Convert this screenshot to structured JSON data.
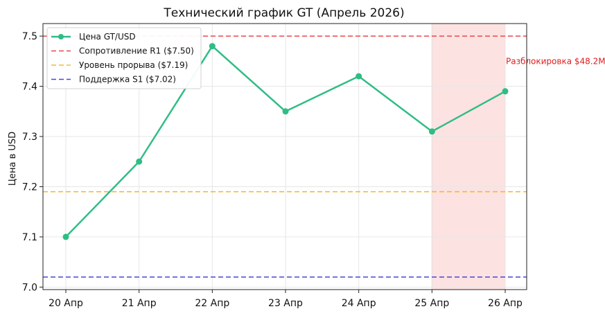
{
  "chart_data": {
    "type": "line",
    "title": "Технический график GT (Апрель 2026)",
    "xlabel": "",
    "ylabel": "Цена в USD",
    "categories": [
      "20 Апр",
      "21 Апр",
      "22 Апр",
      "23 Апр",
      "24 Апр",
      "25 Апр",
      "26 Апр"
    ],
    "series": [
      {
        "name": "Цена GT/USD",
        "values": [
          7.1,
          7.25,
          7.48,
          7.35,
          7.42,
          7.31,
          7.39
        ],
        "color": "#2fbd85"
      }
    ],
    "reference_lines": [
      {
        "name": "Сопротивление R1 ($7.50)",
        "value": 7.5,
        "color": "#e8474a"
      },
      {
        "name": "Уровень прорыва ($7.19)",
        "value": 7.19,
        "color": "#f5b935"
      },
      {
        "name": "Поддержка S1 ($7.02)",
        "value": 7.02,
        "color": "#4646d6"
      }
    ],
    "highlight_region": {
      "from": "25 Апр",
      "to": "26 Апр",
      "color": "#fde2e2"
    },
    "annotation": {
      "text": "Разблокировка $48.2M",
      "x": "26 Апр",
      "y": 7.45,
      "color": "#e11d1d"
    },
    "y_ticks": [
      "7.0",
      "7.1",
      "7.2",
      "7.3",
      "7.4",
      "7.5"
    ],
    "ylim": [
      6.995,
      7.525
    ],
    "grid": true,
    "legend_position": "top-left"
  }
}
